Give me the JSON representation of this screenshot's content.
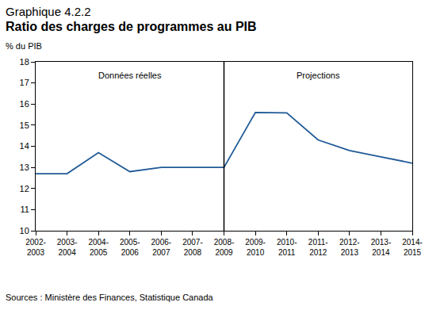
{
  "chart_data": {
    "type": "line",
    "subtitle": "Graphique 4.2.2",
    "title": "Ratio des charges de programmes au PIB",
    "y_label": "% du PIB",
    "source": "Sources : Ministère des Finances, Statistique Canada",
    "categories": [
      "2002-2003",
      "2003-2004",
      "2004-2005",
      "2005-2006",
      "2006-2007",
      "2007-2008",
      "2008-2009",
      "2009-2010",
      "2010-2011",
      "2011-2012",
      "2012-2013",
      "2013-2014",
      "2014-2015"
    ],
    "values": [
      12.7,
      12.7,
      13.7,
      12.8,
      13.0,
      13.0,
      13.0,
      15.6,
      15.58,
      14.3,
      13.8,
      13.5,
      13.2
    ],
    "color": "#1f5a96",
    "ylim": [
      10,
      18
    ],
    "yticks": [
      10,
      11,
      12,
      13,
      14,
      15,
      16,
      17,
      18
    ],
    "grid": false,
    "divider_category": "2008-2009",
    "annotations": [
      {
        "text": "Données réelles"
      },
      {
        "text": "Projections"
      }
    ]
  }
}
